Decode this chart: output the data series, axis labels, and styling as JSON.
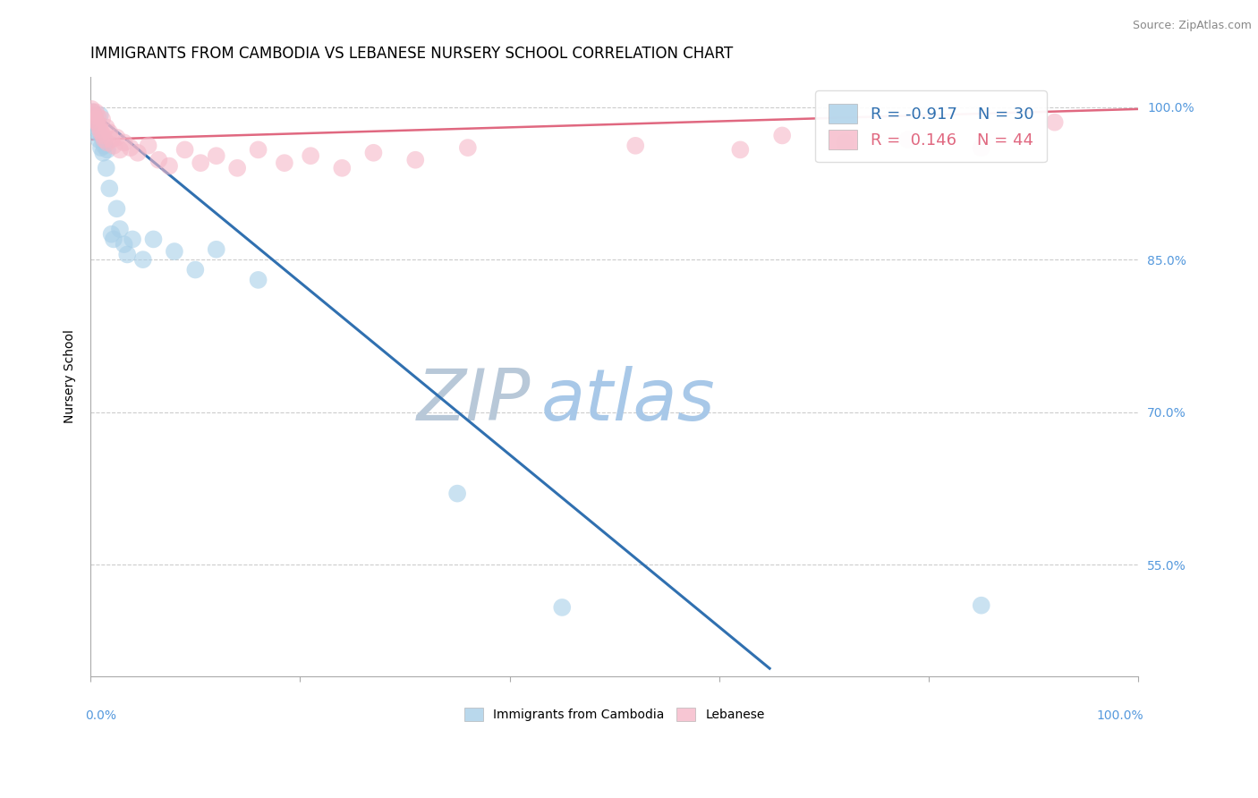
{
  "title": "IMMIGRANTS FROM CAMBODIA VS LEBANESE NURSERY SCHOOL CORRELATION CHART",
  "source": "Source: ZipAtlas.com",
  "ylabel": "Nursery School",
  "ylabel_right_ticks": [
    "100.0%",
    "85.0%",
    "70.0%",
    "55.0%"
  ],
  "ytick_positions": [
    1.0,
    0.85,
    0.7,
    0.55
  ],
  "xlim": [
    0.0,
    1.0
  ],
  "ylim": [
    0.44,
    1.03
  ],
  "watermark_zip": "ZIP",
  "watermark_atlas": "atlas",
  "legend_blue_r": "-0.917",
  "legend_blue_n": "30",
  "legend_pink_r": "0.146",
  "legend_pink_n": "44",
  "blue_color": "#a8cfe8",
  "pink_color": "#f5b8c8",
  "blue_line_color": "#3070b0",
  "pink_line_color": "#e06880",
  "blue_scatter_x": [
    0.002,
    0.004,
    0.005,
    0.006,
    0.007,
    0.008,
    0.009,
    0.01,
    0.011,
    0.012,
    0.013,
    0.015,
    0.016,
    0.018,
    0.02,
    0.022,
    0.025,
    0.028,
    0.032,
    0.035,
    0.04,
    0.05,
    0.06,
    0.08,
    0.1,
    0.12,
    0.16,
    0.35,
    0.45,
    0.85
  ],
  "blue_scatter_y": [
    0.995,
    0.99,
    0.985,
    0.98,
    0.975,
    0.968,
    0.992,
    0.96,
    0.97,
    0.955,
    0.962,
    0.94,
    0.958,
    0.92,
    0.875,
    0.87,
    0.9,
    0.88,
    0.865,
    0.855,
    0.87,
    0.85,
    0.87,
    0.858,
    0.84,
    0.86,
    0.83,
    0.62,
    0.508,
    0.51
  ],
  "pink_scatter_x": [
    0.001,
    0.002,
    0.003,
    0.004,
    0.005,
    0.006,
    0.007,
    0.008,
    0.009,
    0.01,
    0.011,
    0.012,
    0.013,
    0.015,
    0.016,
    0.018,
    0.02,
    0.022,
    0.025,
    0.028,
    0.032,
    0.038,
    0.045,
    0.055,
    0.065,
    0.075,
    0.09,
    0.105,
    0.12,
    0.14,
    0.16,
    0.185,
    0.21,
    0.24,
    0.27,
    0.31,
    0.36,
    0.52,
    0.62,
    0.66,
    0.72,
    0.78,
    0.85,
    0.92
  ],
  "pink_scatter_y": [
    0.998,
    0.995,
    0.992,
    0.988,
    0.995,
    0.985,
    0.99,
    0.982,
    0.978,
    0.975,
    0.988,
    0.972,
    0.968,
    0.98,
    0.965,
    0.975,
    0.968,
    0.962,
    0.97,
    0.958,
    0.965,
    0.96,
    0.955,
    0.962,
    0.948,
    0.942,
    0.958,
    0.945,
    0.952,
    0.94,
    0.958,
    0.945,
    0.952,
    0.94,
    0.955,
    0.948,
    0.96,
    0.962,
    0.958,
    0.972,
    0.965,
    0.968,
    0.96,
    0.985
  ],
  "blue_trendline_x": [
    0.0,
    0.648
  ],
  "blue_trendline_y": [
    0.997,
    0.448
  ],
  "pink_trendline_x": [
    0.0,
    1.0
  ],
  "pink_trendline_y": [
    0.968,
    0.998
  ],
  "grid_color": "#cccccc",
  "background_color": "#ffffff",
  "title_fontsize": 12,
  "axis_label_fontsize": 10,
  "legend_fontsize": 13,
  "watermark_fontsize_zip": 58,
  "watermark_fontsize_atlas": 58,
  "watermark_zip_color": "#b8c8d8",
  "watermark_atlas_color": "#a8c8e8",
  "right_tick_color": "#5599dd",
  "bottom_label_color": "#5599dd"
}
